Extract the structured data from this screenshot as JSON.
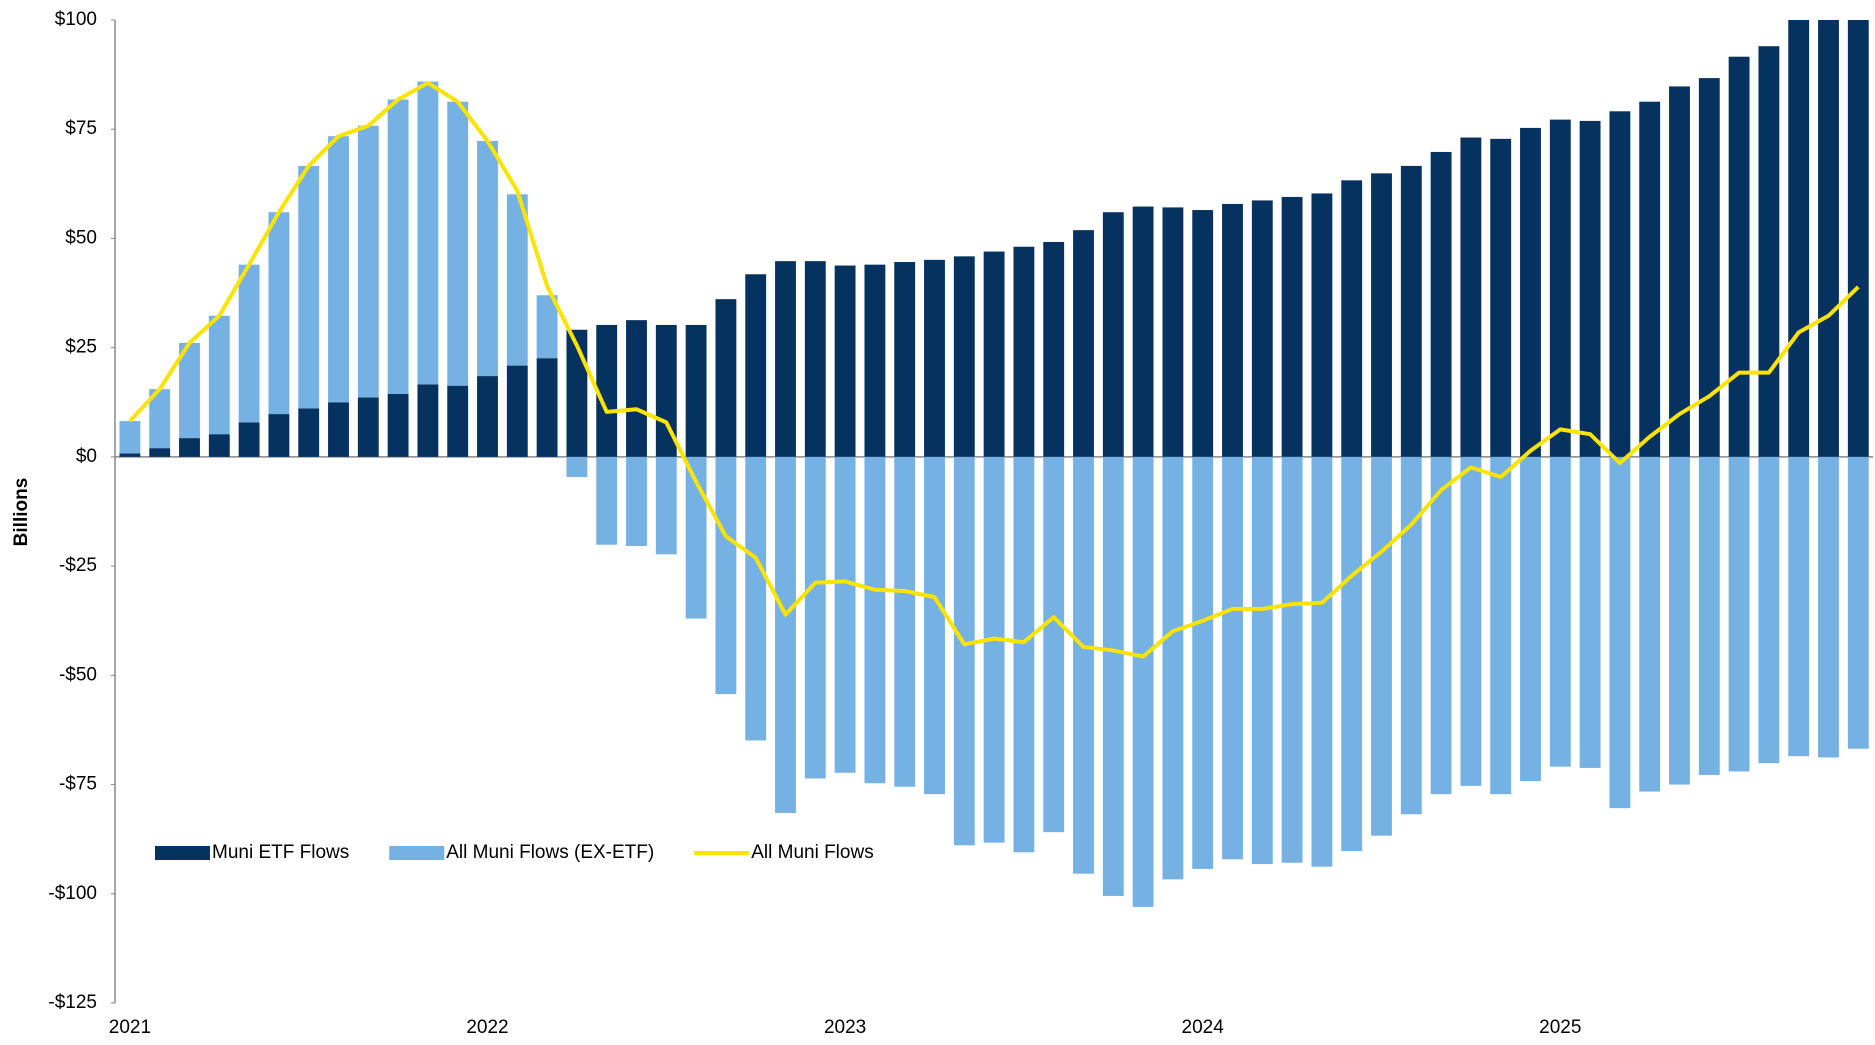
{
  "chart_data": {
    "type": "bar",
    "stacked": true,
    "ylabel": "Billions",
    "categories": [
      "2021",
      null,
      null,
      null,
      null,
      null,
      null,
      null,
      null,
      null,
      null,
      null,
      "2022",
      null,
      null,
      null,
      null,
      null,
      null,
      null,
      null,
      null,
      null,
      null,
      "2023",
      null,
      null,
      null,
      null,
      null,
      null,
      null,
      null,
      null,
      null,
      null,
      "2024",
      null,
      null,
      null,
      null,
      null,
      null,
      null,
      null,
      null,
      null,
      null,
      "2025",
      null,
      null,
      null,
      null,
      null,
      null,
      null,
      null,
      null,
      null
    ],
    "series": [
      {
        "name": "Muni ETF Flows",
        "type": "bar",
        "color": "#06325f",
        "values": [
          0.8,
          2,
          4.3,
          5.2,
          7.9,
          9.8,
          11.1,
          12.5,
          13.6,
          14.4,
          16.6,
          16.3,
          18.5,
          20.9,
          22.6,
          29.1,
          30.2,
          31.3,
          30.2,
          30.2,
          36.1,
          41.8,
          44.8,
          44.8,
          43.8,
          44.0,
          44.6,
          45.1,
          45.9,
          47.0,
          48.1,
          49.2,
          51.9,
          56.0,
          57.3,
          57.1,
          56.5,
          57.9,
          58.7,
          59.5,
          60.3,
          63.3,
          64.9,
          66.6,
          69.8,
          73.1,
          72.8,
          75.3,
          77.2,
          76.9,
          79.1,
          81.3,
          84.8,
          86.7,
          91.6,
          94.0,
          100,
          101,
          103
        ]
      },
      {
        "name": "All Muni Flows (EX-ETF)",
        "type": "bar",
        "color": "#76b1e4",
        "values": [
          7.4,
          13.5,
          21.8,
          27.1,
          36.1,
          46.2,
          55.5,
          60.9,
          62.2,
          67.4,
          69.3,
          65.0,
          53.8,
          39.2,
          14.4,
          -4.6,
          -20.1,
          -20.4,
          -22.3,
          -37.0,
          -54.3,
          -64.9,
          -81.5,
          -73.6,
          -72.3,
          -74.7,
          -75.5,
          -77.2,
          -88.9,
          -88.3,
          -90.5,
          -85.9,
          -95.4,
          -100.5,
          -103.0,
          -96.7,
          -94.3,
          -92.1,
          -93.2,
          -92.9,
          -93.8,
          -90.2,
          -86.7,
          -81.8,
          -77.2,
          -75.3,
          -77.2,
          -74.2,
          -70.9,
          -71.2,
          -80.4,
          -76.6,
          -75.0,
          -72.8,
          -72.0,
          -70.1,
          -68.5,
          -68.8,
          -66.8
        ]
      },
      {
        "name": "All Muni Flows",
        "type": "line",
        "color": "#fce300",
        "values": [
          8.2,
          15.5,
          26.1,
          32.3,
          44.0,
          56.0,
          66.6,
          73.4,
          75.8,
          81.8,
          85.6,
          81.3,
          72.3,
          60.9,
          39.1,
          25.5,
          10.3,
          10.9,
          7.9,
          -5.7,
          -18.2,
          -23.1,
          -36.1,
          -28.8,
          -28.5,
          -30.4,
          -30.7,
          -32.1,
          -42.9,
          -41.6,
          -42.4,
          -36.7,
          -43.5,
          -44.3,
          -45.7,
          -39.9,
          -37.5,
          -34.8,
          -34.8,
          -33.7,
          -33.4,
          -27.2,
          -21.7,
          -15.5,
          -7.6,
          -2.4,
          -4.6,
          1.4,
          6.3,
          5.2,
          -1.4,
          4.6,
          9.8,
          13.9,
          19.3,
          19.3,
          28.5,
          32.3,
          38.9
        ]
      }
    ],
    "ylim": [
      -125,
      100
    ],
    "yticks": [
      {
        "value": -125,
        "label": "-$125"
      },
      {
        "value": -100,
        "label": "-$100"
      },
      {
        "value": -75,
        "label": "-$75"
      },
      {
        "value": -50,
        "label": "-$50"
      },
      {
        "value": -25,
        "label": "-$25"
      },
      {
        "value": 0,
        "label": "$0"
      },
      {
        "value": 25,
        "label": "$25"
      },
      {
        "value": 50,
        "label": "$50"
      },
      {
        "value": 75,
        "label": "$75"
      },
      {
        "value": 100,
        "label": "$100"
      }
    ],
    "grid": false,
    "legend": "lower left"
  }
}
